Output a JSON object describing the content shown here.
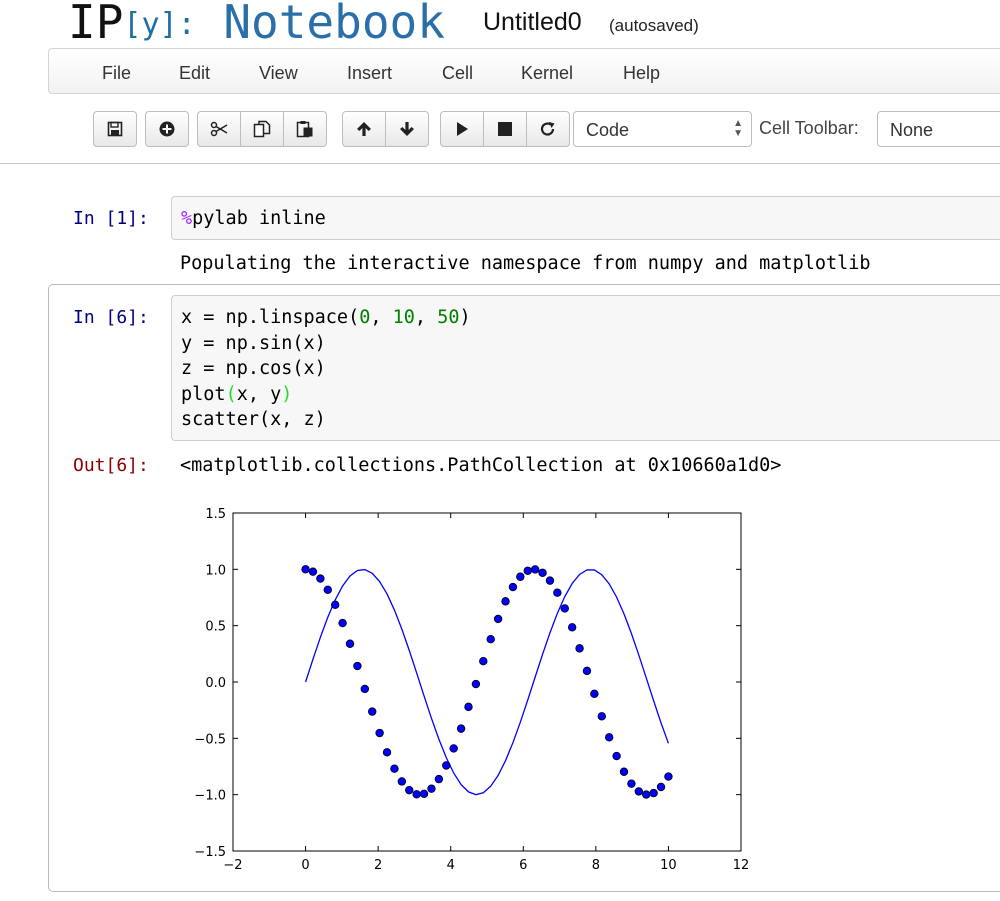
{
  "header": {
    "logo_ip": "IP",
    "logo_bracket": "[y]:",
    "logo_notebook": "Notebook",
    "notebook_name": "Untitled0",
    "autosave_status": "(autosaved)"
  },
  "menu": [
    "File",
    "Edit",
    "View",
    "Insert",
    "Cell",
    "Kernel",
    "Help"
  ],
  "toolbar": {
    "buttons": [
      "save-icon",
      "insert-cell-icon",
      "cut-icon",
      "copy-icon",
      "paste-icon",
      "move-up-icon",
      "move-down-icon",
      "run-icon",
      "stop-icon",
      "restart-icon"
    ],
    "cell_type": "Code",
    "cell_toolbar_label": "Cell Toolbar:",
    "cell_toolbar_value": "None"
  },
  "cells": [
    {
      "prompt": "In [1]:",
      "magic": "%",
      "code_rest": "pylab inline",
      "output": "Populating the interactive namespace from numpy and matplotlib"
    },
    {
      "prompt": "In [6]:",
      "lines": [
        [
          "x = np.linspace(",
          "0",
          ", ",
          "10",
          ", ",
          "50",
          ")"
        ],
        [
          "y = np.sin(x)"
        ],
        [
          "z = np.cos(x)"
        ],
        [
          "plot",
          "(",
          "x, y",
          ")"
        ],
        [
          "scatter(x, z)"
        ]
      ],
      "out_prompt": "Out[6]:",
      "output_text": "<matplotlib.collections.PathCollection at 0x10660a1d0>"
    }
  ],
  "chart_data": {
    "type": "line+scatter",
    "xlim": [
      -2,
      12
    ],
    "ylim": [
      -1.5,
      1.5
    ],
    "xticks": [
      "−2",
      "0",
      "2",
      "4",
      "6",
      "8",
      "10",
      "12"
    ],
    "yticks": [
      "1.5",
      "1.0",
      "0.5",
      "0.0",
      "−0.5",
      "−1.0",
      "−1.5"
    ],
    "series": [
      {
        "kind": "line",
        "function": "sin",
        "x_start": 0,
        "x_end": 10,
        "n": 50,
        "color": "#0000ff"
      },
      {
        "kind": "scatter",
        "function": "cos",
        "x_start": 0,
        "x_end": 10,
        "n": 50,
        "color": "#0000ff"
      }
    ],
    "grid": false
  }
}
